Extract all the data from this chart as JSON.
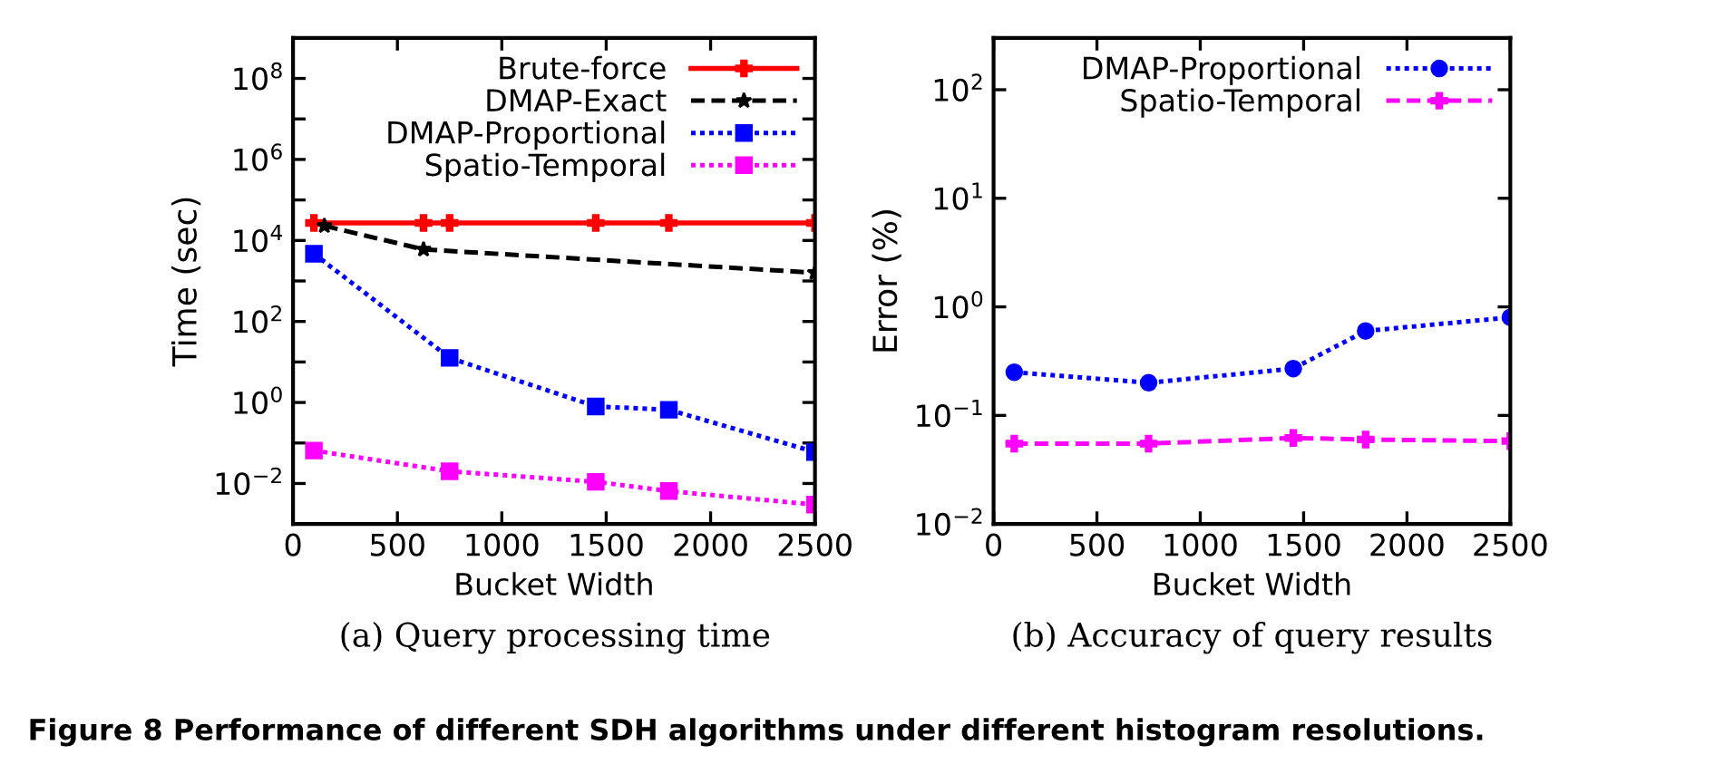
{
  "chart_data": [
    {
      "type": "line",
      "xlabel": "Bucket Width",
      "ylabel": "Time (sec)",
      "log": "y",
      "legend": "top right",
      "grid": false,
      "xlim": [
        0,
        2500
      ],
      "xticks": [
        0,
        500,
        1000,
        1500,
        2000,
        2500
      ],
      "ylim": [
        0.001,
        1000000000
      ],
      "yticks": [
        {
          "value": 0.01,
          "label": "10$^{−2}$"
        },
        {
          "value": 0.1,
          "label": null
        },
        {
          "value": 1,
          "label": "10$^{0}$"
        },
        {
          "value": 10,
          "label": null
        },
        {
          "value": 100,
          "label": "10$^{2}$"
        },
        {
          "value": 1000,
          "label": null
        },
        {
          "value": 10000,
          "label": "10$^{4}$"
        },
        {
          "value": 100000,
          "label": null
        },
        {
          "value": 1000000,
          "label": "10$^{6}$"
        },
        {
          "value": 10000000,
          "label": null
        },
        {
          "value": 100000000,
          "label": "10$^{8}$"
        }
      ],
      "series": [
        {
          "name": "Brute-force",
          "color": "#ff0000",
          "line_style": "solid",
          "marker": "cross",
          "x": [
            100,
            625,
            750,
            1450,
            1800,
            2500
          ],
          "values": [
            27000,
            27000,
            27000,
            27000,
            27000,
            27000
          ]
        },
        {
          "name": "DMAP-Exact",
          "color": "#000000",
          "line_style": "dashed",
          "marker": "star",
          "x": [
            150,
            625,
            2500
          ],
          "values": [
            23000,
            6000,
            1600
          ]
        },
        {
          "name": "DMAP-Proportional",
          "color": "#0000ff",
          "line_style": "dotted",
          "marker": "square",
          "x": [
            100,
            750,
            1450,
            1800,
            2500
          ],
          "values": [
            4700,
            12.6,
            0.8,
            0.66,
            0.06
          ]
        },
        {
          "name": "Spatio-Temporal",
          "color": "#ff00ff",
          "line_style": "dotted",
          "marker": "square",
          "x": [
            100,
            750,
            1450,
            1800,
            2500
          ],
          "values": [
            0.065,
            0.02,
            0.011,
            0.0065,
            0.003
          ]
        }
      ],
      "annotations": [
        "(a) Query processing time",
        "Figure 8 Performance of different SDH algorithms under different histogram resolutions."
      ]
    },
    {
      "type": "line",
      "xlabel": "Bucket Width",
      "ylabel": "Error (%)",
      "log": "y",
      "legend": "top right",
      "grid": false,
      "xlim": [
        0,
        2500
      ],
      "xticks": [
        0,
        500,
        1000,
        1500,
        2000,
        2500
      ],
      "ylim": [
        0.01,
        300
      ],
      "yticks": [
        {
          "value": 0.01,
          "label": "10$^{−2}$"
        },
        {
          "value": 0.1,
          "label": "10$^{−1}$"
        },
        {
          "value": 1,
          "label": "10$^{0}$"
        },
        {
          "value": 10,
          "label": "10$^{1}$"
        },
        {
          "value": 100,
          "label": "10$^{2}$"
        }
      ],
      "series": [
        {
          "name": "DMAP-Proportional",
          "color": "#0000ff",
          "line_style": "dotted",
          "marker": "circle",
          "x": [
            100,
            750,
            1450,
            1800,
            2500
          ],
          "values": [
            0.25,
            0.2,
            0.27,
            0.6,
            0.8
          ]
        },
        {
          "name": "Spatio-Temporal",
          "color": "#ff00ff",
          "line_style": "dashed",
          "marker": "cross",
          "x": [
            100,
            750,
            1450,
            1800,
            2500
          ],
          "values": [
            0.055,
            0.055,
            0.062,
            0.06,
            0.058
          ]
        }
      ],
      "annotations": [
        "(b) Accuracy of query results"
      ]
    }
  ]
}
